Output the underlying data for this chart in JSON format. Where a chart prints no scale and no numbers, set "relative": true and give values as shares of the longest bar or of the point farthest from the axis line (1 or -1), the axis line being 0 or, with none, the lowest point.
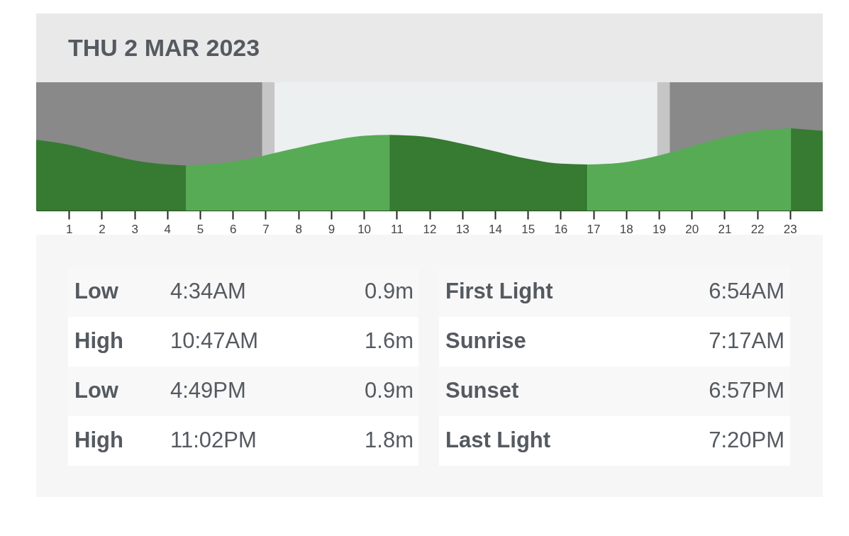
{
  "chart_data": {
    "type": "area",
    "title": "THU 2 MAR 2023",
    "relative": true,
    "tick_labels": "x",
    "xlim": [
      0,
      24
    ],
    "xticks": [
      1,
      2,
      3,
      4,
      5,
      6,
      7,
      8,
      9,
      10,
      11,
      12,
      13,
      14,
      15,
      16,
      17,
      18,
      19,
      20,
      21,
      22,
      23
    ],
    "series": [
      {
        "color": "#377a32",
        "x": [
          0,
          1,
          2,
          3,
          4,
          4.57
        ],
        "values": [
          0.86,
          0.8,
          0.7,
          0.61,
          0.56,
          0.55
        ]
      },
      {
        "color": "#57ab55",
        "x": [
          4.57,
          5.5,
          6.5,
          7.7,
          9,
          10,
          10.78
        ],
        "values": [
          0.55,
          0.57,
          0.63,
          0.74,
          0.85,
          0.91,
          0.92
        ]
      },
      {
        "color": "#377a32",
        "x": [
          10.78,
          11.8,
          12.8,
          13.8,
          15,
          16,
          16.82
        ],
        "values": [
          0.92,
          0.9,
          0.83,
          0.74,
          0.63,
          0.57,
          0.56
        ]
      },
      {
        "color": "#57ab55",
        "x": [
          16.82,
          17.8,
          18.8,
          19.9,
          21,
          22,
          23.03
        ],
        "values": [
          0.56,
          0.58,
          0.65,
          0.77,
          0.89,
          0.97,
          1
        ]
      },
      {
        "color": "#377a32",
        "x": [
          23.03,
          24
        ],
        "values": [
          1,
          0.97
        ]
      }
    ],
    "bands": [
      {
        "axis": "x",
        "from": 0,
        "to": 6.9,
        "color": "#898989"
      },
      {
        "axis": "x",
        "from": 6.9,
        "to": 7.28,
        "color": "#c6c6c6"
      },
      {
        "axis": "x",
        "from": 7.28,
        "to": 18.95,
        "color": "#ecf0f1"
      },
      {
        "axis": "x",
        "from": 18.95,
        "to": 19.33,
        "color": "#c6c6c6"
      },
      {
        "axis": "x",
        "from": 19.33,
        "to": 24,
        "color": "#898989"
      }
    ],
    "annotations": [
      "Low",
      "4:34AM",
      "0.9m",
      "First Light",
      "6:54AM",
      "High",
      "10:47AM",
      "1.6m",
      "Sunrise",
      "7:17AM",
      "Low",
      "4:49PM",
      "0.9m",
      "Sunset",
      "6:57PM",
      "High",
      "11:02PM",
      "1.8m",
      "Last Light",
      "7:20PM"
    ]
  }
}
